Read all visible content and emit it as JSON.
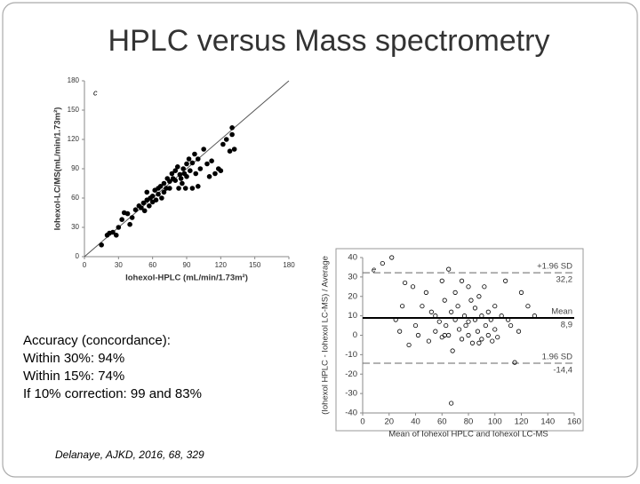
{
  "header": {
    "title": "HPLC versus Mass spectrometry"
  },
  "chart_data": [
    {
      "type": "scatter",
      "panel_label": "c",
      "x_label": "Iohexol-HPLC (mL/min/1.73m²)",
      "y_label": "Iohexol-LC/MS(mL/min/1.73m²)",
      "xlim": [
        0,
        180
      ],
      "xticks": [
        0,
        30,
        60,
        90,
        120,
        150,
        180
      ],
      "ylim": [
        0,
        180
      ],
      "yticks": [
        0,
        30,
        60,
        90,
        120,
        150,
        180
      ],
      "identity_line": true,
      "marker": "filled",
      "color": "#000000",
      "x": [
        15,
        20,
        22,
        25,
        28,
        30,
        33,
        35,
        38,
        40,
        42,
        45,
        48,
        50,
        52,
        53,
        55,
        55,
        57,
        58,
        60,
        60,
        62,
        63,
        65,
        65,
        67,
        68,
        70,
        70,
        72,
        73,
        75,
        75,
        77,
        78,
        80,
        80,
        82,
        83,
        84,
        85,
        86,
        87,
        88,
        89,
        90,
        90,
        92,
        93,
        95,
        95,
        97,
        98,
        100,
        100,
        102,
        105,
        108,
        110,
        112,
        115,
        118,
        120,
        122,
        125,
        128,
        130,
        130,
        132
      ],
      "y": [
        12,
        22,
        24,
        25,
        22,
        30,
        38,
        45,
        44,
        33,
        40,
        48,
        52,
        50,
        55,
        47,
        58,
        66,
        52,
        60,
        62,
        56,
        68,
        58,
        70,
        64,
        72,
        60,
        75,
        66,
        70,
        80,
        77,
        70,
        85,
        80,
        78,
        88,
        92,
        70,
        84,
        80,
        75,
        90,
        85,
        70,
        95,
        82,
        100,
        88,
        70,
        96,
        105,
        85,
        100,
        72,
        90,
        110,
        95,
        82,
        98,
        85,
        90,
        88,
        115,
        120,
        108,
        125,
        132,
        110
      ]
    },
    {
      "type": "scatter",
      "panel_label": "e",
      "x_label": "Mean of Iohexol HPLC and Iohexol LC-MS",
      "y_label": "(Iohexol HPLC - Iohexol LC-MS) / Average",
      "xlim": [
        0,
        160
      ],
      "xticks": [
        0,
        20,
        40,
        60,
        80,
        100,
        120,
        140,
        160
      ],
      "ylim": [
        -40,
        40
      ],
      "yticks": [
        -40,
        -30,
        -20,
        -10,
        0,
        10,
        20,
        30,
        40
      ],
      "marker": "hollow",
      "color": "#000000",
      "reference_lines": [
        {
          "name": "+1.96 SD",
          "value": 32.2,
          "value_label": "32,2"
        },
        {
          "name": "Mean",
          "value": 8.9,
          "value_label": "8,9"
        },
        {
          "name": "1.96 SD",
          "value": -14.4,
          "value_label": "-14,4"
        }
      ],
      "x": [
        15,
        22,
        25,
        28,
        30,
        32,
        35,
        38,
        40,
        42,
        45,
        48,
        50,
        52,
        55,
        55,
        58,
        60,
        60,
        62,
        63,
        65,
        65,
        67,
        68,
        70,
        70,
        72,
        73,
        75,
        75,
        77,
        78,
        80,
        80,
        82,
        83,
        85,
        85,
        87,
        88,
        90,
        90,
        92,
        93,
        95,
        95,
        97,
        98,
        100,
        100,
        102,
        105,
        108,
        110,
        112,
        115,
        118,
        120,
        125,
        130,
        67,
        80,
        62,
        88
      ],
      "y": [
        37,
        40,
        8,
        2,
        15,
        27,
        -5,
        25,
        5,
        0,
        15,
        22,
        -3,
        12,
        10,
        2,
        7,
        28,
        -1,
        18,
        5,
        34,
        0,
        12,
        -8,
        22,
        8,
        15,
        3,
        28,
        -2,
        10,
        5,
        25,
        0,
        18,
        -4,
        14,
        8,
        2,
        20,
        -2,
        10,
        25,
        5,
        12,
        0,
        8,
        -3,
        15,
        3,
        -1,
        10,
        28,
        8,
        5,
        -14,
        2,
        22,
        15,
        10,
        -35,
        7,
        0,
        -4
      ]
    }
  ],
  "notes": {
    "lines": [
      "Accuracy (concordance):",
      "Within 30%: 94%",
      "Within 15%: 74%",
      "If 10% correction: 99 and 83%"
    ],
    "citation": "Delanaye, AJKD, 2016, 68, 329"
  }
}
